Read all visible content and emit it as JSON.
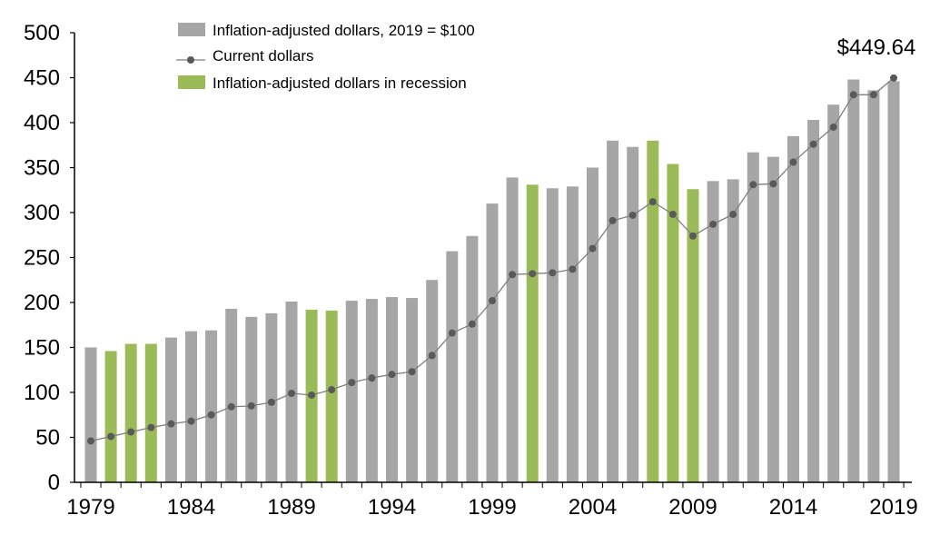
{
  "chart_data": {
    "type": "bar",
    "x": [
      1979,
      1980,
      1981,
      1982,
      1983,
      1984,
      1985,
      1986,
      1987,
      1988,
      1989,
      1990,
      1991,
      1992,
      1993,
      1994,
      1995,
      1996,
      1997,
      1998,
      1999,
      2000,
      2001,
      2002,
      2003,
      2004,
      2005,
      2006,
      2007,
      2008,
      2009,
      2010,
      2011,
      2012,
      2013,
      2014,
      2015,
      2016,
      2017,
      2018,
      2019
    ],
    "series": [
      {
        "name": "Inflation-adjusted dollars, 2019 = $100",
        "kind": "bar",
        "color": "#a6a6a6",
        "recession_color": "#9bbb59",
        "values": [
          150,
          146,
          154,
          154,
          161,
          168,
          169,
          193,
          184,
          188,
          201,
          192,
          191,
          202,
          204,
          206,
          205,
          225,
          257,
          274,
          310,
          339,
          331,
          327,
          329,
          350,
          380,
          373,
          380,
          354,
          326,
          335,
          337,
          367,
          362,
          385,
          403,
          420,
          448,
          436,
          446
        ],
        "recession": [
          false,
          true,
          true,
          true,
          false,
          false,
          false,
          false,
          false,
          false,
          false,
          true,
          true,
          false,
          false,
          false,
          false,
          false,
          false,
          false,
          false,
          false,
          true,
          false,
          false,
          false,
          false,
          false,
          true,
          true,
          true,
          false,
          false,
          false,
          false,
          false,
          false,
          false,
          false,
          false,
          false
        ]
      },
      {
        "name": "Current dollars",
        "kind": "line",
        "color": "#7f7f7f",
        "marker_color": "#595959",
        "values": [
          46,
          51,
          56,
          61,
          65,
          68,
          75,
          84,
          85,
          89,
          99,
          97,
          103,
          111,
          116,
          120,
          123,
          141,
          166,
          176,
          202,
          231,
          232,
          233,
          237,
          260,
          291,
          297,
          312,
          298,
          274,
          287,
          298,
          331,
          332,
          356,
          376,
          395,
          431,
          431,
          449.64
        ]
      }
    ],
    "legend_recession_label": "Inflation-adjusted dollars in recession",
    "annotation": "$449.64",
    "x_tick_labels": [
      "1979",
      "1984",
      "1989",
      "1994",
      "1999",
      "2004",
      "2009",
      "2014",
      "2019"
    ],
    "y_ticks": [
      0,
      50,
      100,
      150,
      200,
      250,
      300,
      350,
      400,
      450,
      500
    ],
    "ylim": [
      0,
      500
    ],
    "grid": false,
    "legend_position": "top-left"
  }
}
